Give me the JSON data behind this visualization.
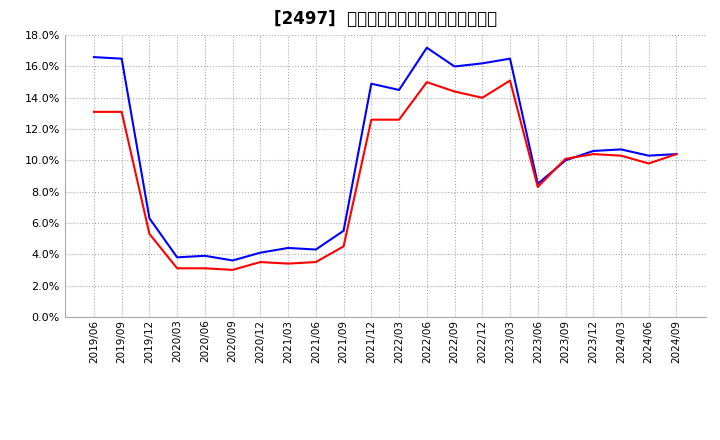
{
  "title": "[2497]  固定比率、固定長期適合率の推移",
  "series_names": [
    "固定比率",
    "固定長期適合率"
  ],
  "dates": [
    "2019/06",
    "2019/09",
    "2019/12",
    "2020/03",
    "2020/06",
    "2020/09",
    "2020/12",
    "2021/03",
    "2021/06",
    "2021/09",
    "2021/12",
    "2022/03",
    "2022/06",
    "2022/09",
    "2022/12",
    "2023/03",
    "2023/06",
    "2023/09",
    "2023/12",
    "2024/03",
    "2024/06",
    "2024/09"
  ],
  "values_fixed_ratio": [
    16.6,
    16.5,
    6.3,
    3.8,
    3.9,
    3.6,
    4.1,
    4.4,
    4.3,
    5.5,
    14.9,
    14.5,
    17.2,
    16.0,
    16.2,
    16.5,
    8.5,
    10.0,
    10.6,
    10.7,
    10.3,
    10.4
  ],
  "values_long_term": [
    13.1,
    13.1,
    5.3,
    3.1,
    3.1,
    3.0,
    3.5,
    3.4,
    3.5,
    4.5,
    12.6,
    12.6,
    15.0,
    14.4,
    14.0,
    15.1,
    8.3,
    10.1,
    10.4,
    10.3,
    9.8,
    10.4
  ],
  "color_fixed": "#0000ff",
  "color_long": "#ff0000",
  "ylim": [
    0.0,
    18.0
  ],
  "yticks": [
    0.0,
    2.0,
    4.0,
    6.0,
    8.0,
    10.0,
    12.0,
    14.0,
    16.0,
    18.0
  ],
  "bg_color": "#ffffff",
  "plot_bg": "#ffffff",
  "grid_color": "#aaaaaa",
  "title_fontsize": 12,
  "tick_fontsize": 7.5,
  "ytick_fontsize": 8,
  "legend_fontsize": 9,
  "linewidth": 1.5
}
